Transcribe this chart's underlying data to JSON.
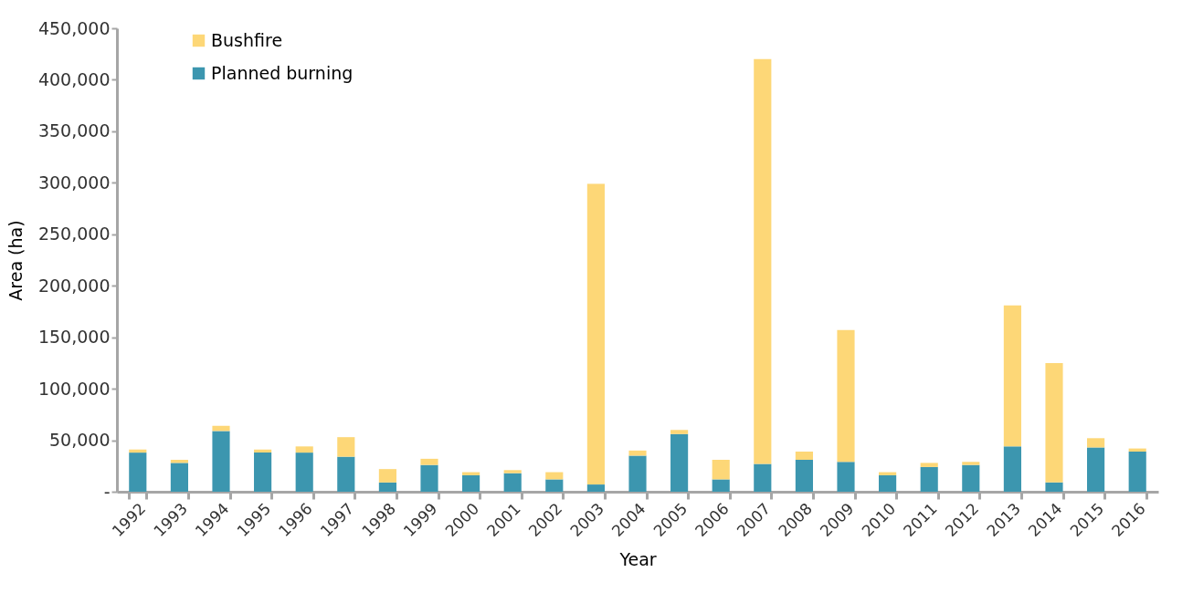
{
  "chart_data": {
    "type": "bar",
    "stacked": true,
    "xlabel": "Year",
    "ylabel": "Area (ha)",
    "categories": [
      "1992",
      "1993",
      "1994",
      "1995",
      "1996",
      "1997",
      "1998",
      "1999",
      "2000",
      "2001",
      "2002",
      "2003",
      "2004",
      "2005",
      "2006",
      "2007",
      "2008",
      "2009",
      "2010",
      "2011",
      "2012",
      "2013",
      "2014",
      "2015",
      "2016"
    ],
    "series": [
      {
        "name": "Planned burning",
        "color": "#3c96af",
        "values": [
          38000,
          28000,
          59000,
          38000,
          38000,
          34000,
          9000,
          26000,
          16000,
          18000,
          12000,
          7000,
          35000,
          56000,
          12000,
          27000,
          31000,
          29000,
          16000,
          24000,
          26000,
          44000,
          9000,
          43000,
          39000
        ]
      },
      {
        "name": "Bushfire",
        "color": "#fdd777",
        "values": [
          3000,
          3000,
          5000,
          3000,
          6000,
          19000,
          13000,
          6000,
          3000,
          3000,
          7000,
          292000,
          5000,
          4000,
          19000,
          393000,
          8000,
          128000,
          3000,
          4000,
          3000,
          137000,
          116000,
          9000,
          3000
        ]
      }
    ],
    "ylim": [
      0,
      450000
    ],
    "yticks": [
      {
        "value": 0,
        "label": "-"
      },
      {
        "value": 50000,
        "label": "50,000"
      },
      {
        "value": 100000,
        "label": "100,000"
      },
      {
        "value": 150000,
        "label": "150,000"
      },
      {
        "value": 200000,
        "label": "200,000"
      },
      {
        "value": 250000,
        "label": "250,000"
      },
      {
        "value": 300000,
        "label": "300,000"
      },
      {
        "value": 350000,
        "label": "350,000"
      },
      {
        "value": 400000,
        "label": "400,000"
      },
      {
        "value": 450000,
        "label": "450,000"
      }
    ],
    "grid": false,
    "legend": "top left"
  }
}
